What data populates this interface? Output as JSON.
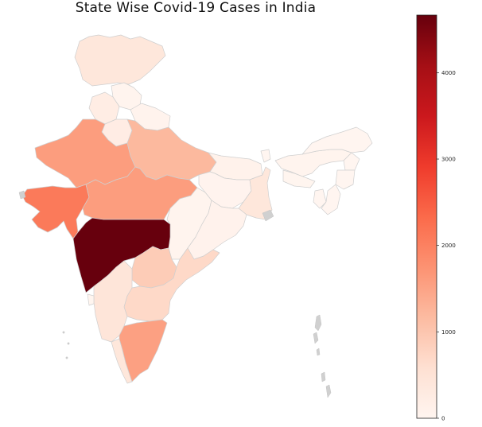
{
  "title": "State Wise Covid-19 Cases in India",
  "colormap": {
    "name": "Reds",
    "min": 0,
    "max": 4666,
    "stops": [
      "#fff5f0",
      "#fee0d2",
      "#fcbba1",
      "#fc9272",
      "#fb6a4a",
      "#ef3b2c",
      "#cb181d",
      "#a50f15",
      "#67000d"
    ],
    "ticks": [
      0,
      1000,
      2000,
      3000,
      4000
    ]
  },
  "no_data_color": "#d0d0d0",
  "regions": [
    {
      "name": "Jammu & Kashmir",
      "value": 400
    },
    {
      "name": "Himachal Pradesh",
      "value": 40
    },
    {
      "name": "Punjab",
      "value": 230
    },
    {
      "name": "Uttarakhand",
      "value": 50
    },
    {
      "name": "Haryana",
      "value": 240
    },
    {
      "name": "Rajasthan",
      "value": 1600
    },
    {
      "name": "Uttar Pradesh",
      "value": 1200
    },
    {
      "name": "Gujarat",
      "value": 2100
    },
    {
      "name": "Madhya Pradesh",
      "value": 1600
    },
    {
      "name": "Bihar",
      "value": 90
    },
    {
      "name": "Jharkhand",
      "value": 45
    },
    {
      "name": "West Bengal",
      "value": 400
    },
    {
      "name": "Chhattisgarh",
      "value": 40
    },
    {
      "name": "Odisha",
      "value": 70
    },
    {
      "name": "Maharashtra",
      "value": 4666
    },
    {
      "name": "Telangana",
      "value": 900
    },
    {
      "name": "Andhra Pradesh",
      "value": 700
    },
    {
      "name": "Karnataka",
      "value": 450
    },
    {
      "name": "Goa",
      "value": 10
    },
    {
      "name": "Kerala",
      "value": 400
    },
    {
      "name": "Tamil Nadu",
      "value": 1550
    },
    {
      "name": "Sikkim",
      "value": 0
    },
    {
      "name": "Assam",
      "value": 40
    },
    {
      "name": "Arunachal Pradesh",
      "value": 1
    },
    {
      "name": "Nagaland",
      "value": 0
    },
    {
      "name": "Manipur",
      "value": 2
    },
    {
      "name": "Meghalaya",
      "value": 12
    },
    {
      "name": "Tripura",
      "value": 2
    },
    {
      "name": "Mizoram",
      "value": 1
    }
  ]
}
